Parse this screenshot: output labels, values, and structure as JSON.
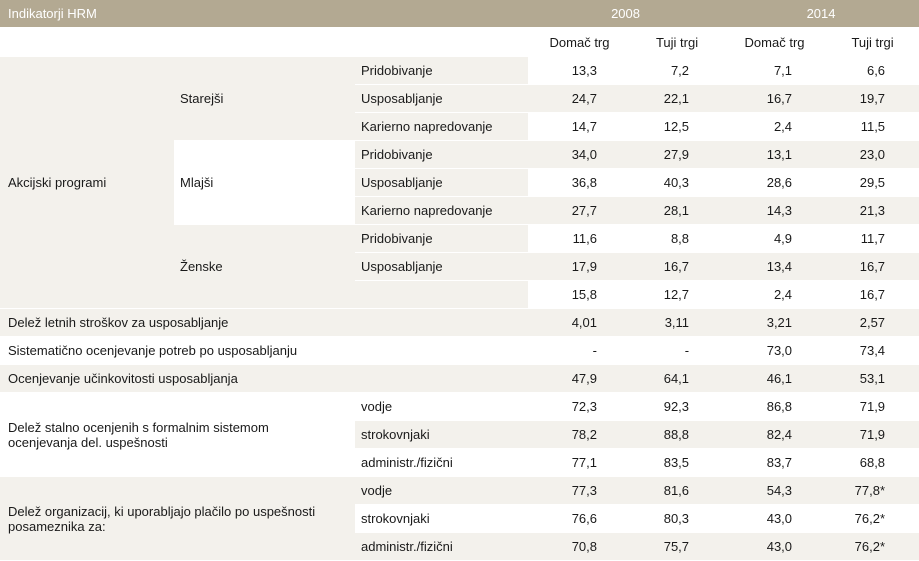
{
  "header": {
    "title": "Indikatorji HRM",
    "year1": "2008",
    "year2": "2014"
  },
  "subheader": {
    "c1": "Domač trg",
    "c2": "Tuji trgi",
    "c3": "Domač trg",
    "c4": "Tuji trgi"
  },
  "akcijski": {
    "label": "Akcijski programi",
    "starejsi": "Starejši",
    "mlajsi": "Mlajši",
    "zenske": "Ženske",
    "rows": [
      {
        "item": "Pridobivanje",
        "v": [
          "13,3",
          "7,2",
          "7,1",
          "6,6"
        ]
      },
      {
        "item": "Usposabljanje",
        "v": [
          "24,7",
          "22,1",
          "16,7",
          "19,7"
        ]
      },
      {
        "item": "Karierno napredovanje",
        "v": [
          "14,7",
          "12,5",
          "2,4",
          "11,5"
        ]
      },
      {
        "item": "Pridobivanje",
        "v": [
          "34,0",
          "27,9",
          "13,1",
          "23,0"
        ]
      },
      {
        "item": "Usposabljanje",
        "v": [
          "36,8",
          "40,3",
          "28,6",
          "29,5"
        ]
      },
      {
        "item": "Karierno napredovanje",
        "v": [
          "27,7",
          "28,1",
          "14,3",
          "21,3"
        ]
      },
      {
        "item": "Pridobivanje",
        "v": [
          "11,6",
          "8,8",
          "4,9",
          "11,7"
        ]
      },
      {
        "item": "Usposabljanje",
        "v": [
          "17,9",
          "16,7",
          "13,4",
          "16,7"
        ]
      },
      {
        "item": "",
        "v": [
          "15,8",
          "12,7",
          "2,4",
          "16,7"
        ]
      }
    ]
  },
  "single": [
    {
      "label": "Delež letnih stroškov za usposabljanje",
      "v": [
        "4,01",
        "3,11",
        "3,21",
        "2,57"
      ]
    },
    {
      "label": "Sistematično ocenjevanje potreb po usposabljanju",
      "v": [
        "-",
        "-",
        "73,0",
        "73,4"
      ]
    },
    {
      "label": "Ocenjevanje učinkovitosti usposabljanja",
      "v": [
        "47,9",
        "64,1",
        "46,1",
        "53,1"
      ]
    }
  ],
  "ocenjeni": {
    "label_line1": "Delež stalno ocenjenih s formalnim sistemom",
    "label_line2": "ocenjevanja del. uspešnosti",
    "rows": [
      {
        "item": "vodje",
        "v": [
          "72,3",
          "92,3",
          "86,8",
          "71,9"
        ]
      },
      {
        "item": "strokovnjaki",
        "v": [
          "78,2",
          "88,8",
          "82,4",
          "71,9"
        ]
      },
      {
        "item": "administr./fizični",
        "v": [
          "77,1",
          "83,5",
          "83,7",
          "68,8"
        ]
      }
    ]
  },
  "placilo": {
    "label_line1": "Delež organizacij, ki uporabljajo plačilo po uspešnosti",
    "label_line2": "posameznika za:",
    "rows": [
      {
        "item": "vodje",
        "v": [
          "77,3",
          "81,6",
          "54,3",
          "77,8*"
        ]
      },
      {
        "item": "strokovnjaki",
        "v": [
          "76,6",
          "80,3",
          "43,0",
          "76,2*"
        ]
      },
      {
        "item": "administr./fizični",
        "v": [
          "70,8",
          "75,7",
          "43,0",
          "76,2*"
        ]
      }
    ]
  }
}
